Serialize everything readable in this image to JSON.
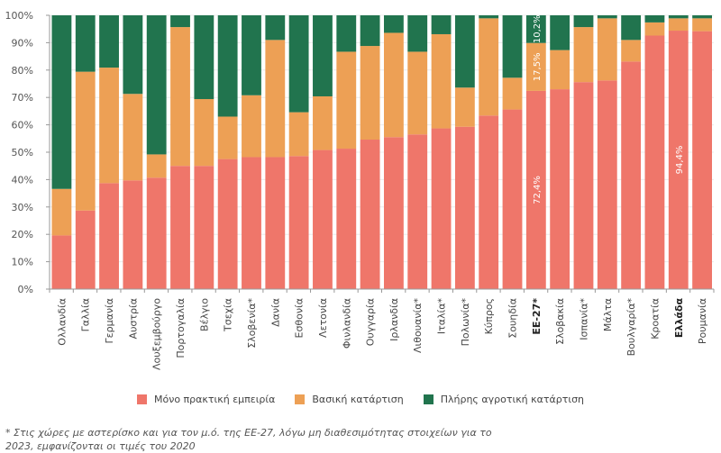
{
  "chart_data": {
    "type": "bar",
    "stacked": true,
    "title": "",
    "xlabel": "",
    "ylabel": "",
    "ylim": [
      0,
      100
    ],
    "yticks": [
      "0%",
      "10%",
      "20%",
      "30%",
      "40%",
      "50%",
      "60%",
      "70%",
      "80%",
      "90%",
      "100%"
    ],
    "grid": true,
    "legend_position": "bottom",
    "categories": [
      "Ολλανδία",
      "Γαλλία",
      "Γερμανία",
      "Αυστρία",
      "Λουξεμβούργο",
      "Πορτογαλία",
      "Βέλγιο",
      "Τσεχία",
      "Σλοβενία*",
      "Δανία",
      "Εσθονία",
      "Λετονία",
      "Φινλανδία",
      "Ουγγαρία",
      "Ιρλανδία",
      "Λιθουανία*",
      "Ιταλία*",
      "Πολωνία*",
      "Κύπρος",
      "Σουηδία",
      "ΕΕ-27*",
      "Σλοβακία",
      "Ισπανία*",
      "Μάλτα",
      "Βουλγαρία*",
      "Κροατία",
      "Ελλάδα",
      "Ρουμανία"
    ],
    "bold_categories": [
      "ΕΕ-27*",
      "Ελλάδα"
    ],
    "series": [
      {
        "name": "Μόνο πρακτική εμπειρία",
        "color": "#ef766a",
        "values": [
          19.6,
          28.7,
          38.7,
          39.7,
          40.7,
          45.0,
          45.0,
          47.5,
          48.2,
          48.2,
          48.6,
          50.8,
          51.3,
          54.6,
          55.5,
          56.5,
          58.7,
          59.3,
          63.4,
          65.6,
          72.4,
          73.0,
          75.6,
          76.2,
          83.1,
          92.6,
          94.4,
          94.2
        ]
      },
      {
        "name": "Βασική κατάρτιση",
        "color": "#eda055",
        "values": [
          17.0,
          50.7,
          42.2,
          31.6,
          8.5,
          50.7,
          24.4,
          15.5,
          22.6,
          42.8,
          16.0,
          19.6,
          35.4,
          34.2,
          38.1,
          30.2,
          34.4,
          14.3,
          35.5,
          11.6,
          17.5,
          14.3,
          20.1,
          22.7,
          7.9,
          4.8,
          4.5,
          4.7
        ]
      },
      {
        "name": "Πλήρης αγροτική κατάρτιση",
        "color": "#21744e",
        "values": [
          63.4,
          20.6,
          19.1,
          28.7,
          50.8,
          4.3,
          30.6,
          37.0,
          29.2,
          9.0,
          35.4,
          29.6,
          13.3,
          11.2,
          6.4,
          13.3,
          6.9,
          26.4,
          1.1,
          22.8,
          10.2,
          12.7,
          4.3,
          1.1,
          9.0,
          2.6,
          1.1,
          1.1
        ]
      }
    ],
    "data_labels": [
      {
        "category": "ΕΕ-27*",
        "series": 0,
        "text": "72,4%"
      },
      {
        "category": "ΕΕ-27*",
        "series": 1,
        "text": "17,5%"
      },
      {
        "category": "ΕΕ-27*",
        "series": 2,
        "text": "10,2%"
      },
      {
        "category": "Ελλάδα",
        "series": 0,
        "text": "94,4%"
      }
    ]
  },
  "legend": {
    "items": [
      {
        "label": "Μόνο πρακτική εμπειρία",
        "color": "#ef766a"
      },
      {
        "label": "Βασική κατάρτιση",
        "color": "#eda055"
      },
      {
        "label": "Πλήρης αγροτική κατάρτιση",
        "color": "#21744e"
      }
    ]
  },
  "footnote": "* Στις χώρες με αστερίσκο και για τον μ.ό. της ΕΕ-27, λόγω μη διαθεσιμότητας στοιχείων για το 2023, εμφανίζονται οι τιμές του 2020"
}
